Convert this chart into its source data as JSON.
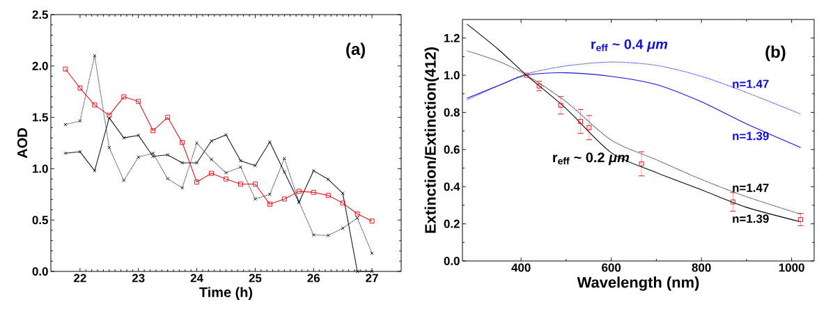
{
  "chart_data": [
    {
      "type": "line",
      "xlabel": "Time (h)",
      "ylabel": "AOD",
      "annotations": [
        "(a)"
      ],
      "x": [
        21.75,
        22,
        22.25,
        22.5,
        22.75,
        23,
        23.25,
        23.5,
        23.75,
        24,
        24.25,
        24.5,
        24.75,
        25,
        25.25,
        25.5,
        25.75,
        26,
        26.25,
        26.5,
        26.75,
        27
      ],
      "xlim": [
        21.5,
        27.5
      ],
      "xticks": [
        22,
        23,
        24,
        25,
        26,
        27
      ],
      "ylim": [
        0,
        2.5
      ],
      "yticks": [
        {
          "value": 0,
          "label": "0.0"
        },
        0.5,
        {
          "value": 1,
          "label": "1.0"
        },
        1.5,
        {
          "value": 2,
          "label": "2.0"
        },
        2.5
      ],
      "series": [
        {
          "color": "#101828",
          "marker": "cross",
          "line_style": "dotted",
          "values": [
            1.43,
            1.465,
            2.1,
            1.205,
            0.885,
            1.113,
            1.15,
            0.903,
            0.813,
            1.25,
            1.09,
            0.96,
            1.016,
            0.705,
            0.75,
            1.1,
            0.677,
            0.355,
            0.35,
            0.42,
            0.52,
            0.176
          ]
        },
        {
          "color": "#101828",
          "marker": "cross",
          "line_style": "solid",
          "values": [
            1.15,
            1.165,
            0.98,
            1.495,
            1.3,
            1.325,
            1.12,
            1.135,
            1.057,
            1.057,
            1.27,
            1.33,
            1.077,
            1.03,
            1.26,
            0.967,
            0.673,
            0.98,
            0.897,
            0.76,
            0,
            0
          ]
        },
        {
          "color": "#e8141b",
          "marker": "square",
          "line_style": "solid",
          "values": [
            1.97,
            1.785,
            1.62,
            1.52,
            1.7,
            1.655,
            1.37,
            1.5,
            1.255,
            0.87,
            0.955,
            0.9,
            0.85,
            0.85,
            0.655,
            0.705,
            0.78,
            0.77,
            0.74,
            0.665,
            0.56,
            0.49
          ]
        }
      ]
    },
    {
      "type": "line",
      "xlabel": "Wavelength (nm)",
      "ylabel": "Extinction/Extinction(412)",
      "annotations": [
        "(b)",
        "r$_{eff}$ ~ 0.4 *μm*",
        "r$_{eff}$ ~ 0.2 *μm*"
      ],
      "xlim": [
        270,
        1050
      ],
      "xticks": [
        400,
        600,
        800,
        1000
      ],
      "ylim": [
        0,
        1.3
      ],
      "yticks": [
        {
          "value": 0,
          "label": "0.0"
        },
        0.2,
        0.4,
        0.6,
        0.8,
        {
          "value": 1,
          "label": "1.0"
        },
        1.2
      ],
      "series": [
        {
          "name": "n=1.47",
          "color": "#1010e0",
          "line_style": "dotted",
          "x": [
            280,
            350,
            412,
            500,
            600,
            700,
            800,
            900,
            1020
          ],
          "values": [
            0.867,
            0.944,
            1.007,
            1.05,
            1.071,
            1.053,
            0.994,
            0.907,
            0.791
          ]
        },
        {
          "name": "n=1.39",
          "color": "#1010e0",
          "line_style": "solid",
          "x": [
            280,
            350,
            412,
            500,
            600,
            700,
            800,
            900,
            1020
          ],
          "values": [
            0.876,
            0.944,
            1.0,
            1.013,
            0.994,
            0.95,
            0.857,
            0.738,
            0.611
          ]
        },
        {
          "name": "n=1.47",
          "color": "#000000",
          "line_style": "dotted",
          "x": [
            280,
            350,
            412,
            500,
            600,
            700,
            800,
            900,
            1020
          ],
          "values": [
            1.131,
            1.075,
            1.0,
            0.857,
            0.651,
            0.545,
            0.439,
            0.346,
            0.252
          ]
        },
        {
          "name": "n=1.39",
          "color": "#000000",
          "line_style": "solid",
          "x": [
            280,
            350,
            412,
            500,
            600,
            700,
            800,
            900,
            1020
          ],
          "values": [
            1.275,
            1.138,
            1.0,
            0.82,
            0.583,
            0.476,
            0.383,
            0.289,
            0.211
          ]
        },
        {
          "type": "scatter",
          "color": "#e8141b",
          "marker": "square",
          "x": [
            412,
            440,
            488,
            532,
            551,
            667,
            870,
            1020
          ],
          "values": [
            1.0,
            0.942,
            0.838,
            0.751,
            0.718,
            0.523,
            0.318,
            0.223
          ],
          "errors": [
            null,
            0.025,
            0.047,
            0.064,
            0.065,
            0.065,
            0.05,
            0.033
          ]
        }
      ]
    }
  ]
}
